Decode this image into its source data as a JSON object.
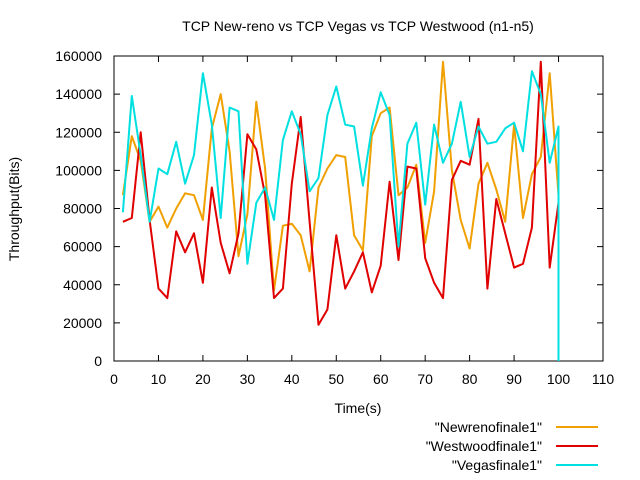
{
  "chart_data": {
    "type": "line",
    "title": "TCP New-reno vs TCP Vegas vs TCP Westwood (n1-n5)",
    "xlabel": "Time(s)",
    "ylabel": "Throughput(Bits)",
    "xlim": [
      0,
      110
    ],
    "ylim": [
      0,
      160000
    ],
    "xticks": [
      0,
      10,
      20,
      30,
      40,
      50,
      60,
      70,
      80,
      90,
      100,
      110
    ],
    "yticks": [
      0,
      20000,
      40000,
      60000,
      80000,
      100000,
      120000,
      140000,
      160000
    ],
    "grid": false,
    "legend_position": "bottom-right, below plot",
    "series": [
      {
        "name": "\"Newrenofinale1\"",
        "color": "#f0a000",
        "x": [
          2,
          4,
          6,
          8,
          10,
          12,
          14,
          16,
          18,
          20,
          22,
          24,
          26,
          28,
          30,
          32,
          34,
          36,
          38,
          40,
          42,
          44,
          46,
          48,
          50,
          52,
          54,
          56,
          58,
          60,
          62,
          64,
          66,
          68,
          70,
          72,
          74,
          76,
          78,
          80,
          82,
          84,
          86,
          88,
          90,
          92,
          94,
          96,
          98,
          100
        ],
        "y": [
          87000,
          118000,
          105000,
          73000,
          81000,
          70000,
          80000,
          88000,
          87000,
          74000,
          122000,
          140000,
          110000,
          55000,
          77000,
          136000,
          101000,
          37000,
          71000,
          72000,
          66000,
          47000,
          91000,
          101000,
          108000,
          107000,
          66000,
          58000,
          118000,
          130000,
          133000,
          87000,
          91000,
          103000,
          62000,
          89000,
          157000,
          100000,
          74000,
          59000,
          93000,
          104000,
          90000,
          73000,
          124000,
          75000,
          98000,
          107000,
          151000,
          87000
        ]
      },
      {
        "name": "\"Westwoodfinale1\"",
        "color": "#e00000",
        "x": [
          2,
          4,
          6,
          8,
          10,
          12,
          14,
          16,
          18,
          20,
          22,
          24,
          26,
          28,
          30,
          32,
          34,
          36,
          38,
          40,
          42,
          44,
          46,
          48,
          50,
          52,
          54,
          56,
          58,
          60,
          62,
          64,
          66,
          68,
          70,
          72,
          74,
          76,
          78,
          80,
          82,
          84,
          86,
          88,
          90,
          92,
          94,
          96,
          98,
          100
        ],
        "y": [
          73000,
          75000,
          120000,
          74000,
          38000,
          33000,
          68000,
          57000,
          67000,
          41000,
          91000,
          62000,
          46000,
          67000,
          119000,
          111000,
          87000,
          33000,
          38000,
          93000,
          128000,
          73000,
          19000,
          27000,
          66000,
          38000,
          47000,
          57000,
          36000,
          50000,
          94000,
          53000,
          102000,
          101000,
          54000,
          41000,
          33000,
          95000,
          105000,
          103000,
          127000,
          38000,
          85000,
          67000,
          49000,
          51000,
          70000,
          157000,
          49000,
          83000
        ]
      },
      {
        "name": "\"Vegasfinale1\"",
        "color": "#00e0e0",
        "x": [
          2,
          4,
          6,
          8,
          10,
          12,
          14,
          16,
          18,
          20,
          22,
          24,
          26,
          28,
          30,
          32,
          34,
          36,
          38,
          40,
          42,
          44,
          46,
          48,
          50,
          52,
          54,
          56,
          58,
          60,
          62,
          64,
          66,
          68,
          70,
          72,
          74,
          76,
          78,
          80,
          82,
          84,
          86,
          88,
          90,
          92,
          94,
          96,
          98,
          100,
          100
        ],
        "y": [
          78000,
          139000,
          108000,
          73000,
          101000,
          98000,
          115000,
          93000,
          108000,
          151000,
          124000,
          75000,
          133000,
          131000,
          51000,
          83000,
          91000,
          74000,
          116000,
          131000,
          119000,
          89000,
          96000,
          129000,
          144000,
          124000,
          123000,
          92000,
          122000,
          141000,
          129000,
          60000,
          114000,
          125000,
          82000,
          124000,
          104000,
          114000,
          136000,
          107000,
          123000,
          114000,
          115000,
          122000,
          125000,
          110000,
          152000,
          140000,
          104000,
          123000,
          0
        ]
      }
    ]
  }
}
